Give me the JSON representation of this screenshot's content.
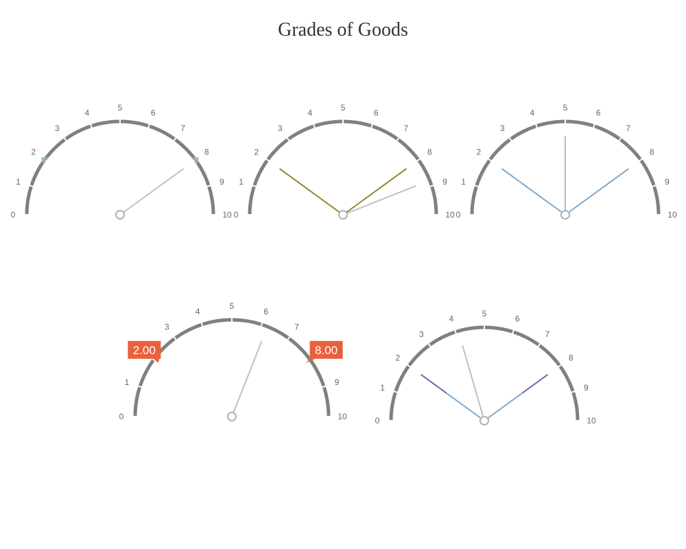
{
  "title": "Grades of Goods",
  "chart_data": [
    {
      "type": "gauge",
      "scale": {
        "min": 0,
        "max": 10,
        "ticks": [
          "0",
          "1",
          "2",
          "3",
          "4",
          "5",
          "6",
          "7",
          "8",
          "9",
          "10"
        ]
      },
      "needles": [
        {
          "value": 8.0,
          "color": "#c0c0c0"
        }
      ],
      "markers": [
        {
          "value": 2,
          "color": "#8fbc8f"
        },
        {
          "value": 8,
          "color": "#8fbc8f"
        }
      ],
      "value_labels": []
    },
    {
      "type": "gauge",
      "scale": {
        "min": 0,
        "max": 10,
        "ticks": [
          "0",
          "1",
          "2",
          "3",
          "4",
          "5",
          "6",
          "7",
          "8",
          "9",
          "10"
        ]
      },
      "needles": [
        {
          "value": 2.0,
          "color": "#9a8418"
        },
        {
          "value": 8.0,
          "color": "#9a8418"
        },
        {
          "value": 8.8,
          "color": "#c0c0c0"
        }
      ],
      "markers": [],
      "value_labels": []
    },
    {
      "type": "gauge",
      "scale": {
        "min": 0,
        "max": 10,
        "ticks": [
          "0",
          "1",
          "2",
          "3",
          "4",
          "5",
          "6",
          "7",
          "8",
          "9",
          "10"
        ]
      },
      "needles": [
        {
          "value": 2.0,
          "color": "#7ba7cc"
        },
        {
          "value": 8.0,
          "color": "#7ba7cc"
        },
        {
          "value": 5.0,
          "color": "#b8b8b8"
        }
      ],
      "markers": [],
      "value_labels": []
    },
    {
      "type": "gauge",
      "scale": {
        "min": 0,
        "max": 10,
        "ticks": [
          "0",
          "1",
          "2",
          "3",
          "4",
          "5",
          "6",
          "7",
          "8",
          "9",
          "10"
        ]
      },
      "needles": [
        {
          "value": 6.2,
          "color": "#c0c0c0"
        }
      ],
      "markers": [],
      "value_labels": [
        {
          "value": 2,
          "text": "2.00",
          "color": "#e8603c"
        },
        {
          "value": 8,
          "text": "8.00",
          "color": "#e8603c"
        }
      ]
    },
    {
      "type": "gauge",
      "scale": {
        "min": 0,
        "max": 10,
        "ticks": [
          "0",
          "1",
          "2",
          "3",
          "4",
          "5",
          "6",
          "7",
          "8",
          "9",
          "10"
        ]
      },
      "needles": [
        {
          "value": 2.0,
          "color": "#7ba7cc",
          "tip_color": "#7b5ea7"
        },
        {
          "value": 8.0,
          "color": "#7ba7cc",
          "tip_color": "#7b5ea7"
        },
        {
          "value": 4.1,
          "color": "#c0c0c0"
        }
      ],
      "markers": [],
      "value_labels": []
    }
  ]
}
